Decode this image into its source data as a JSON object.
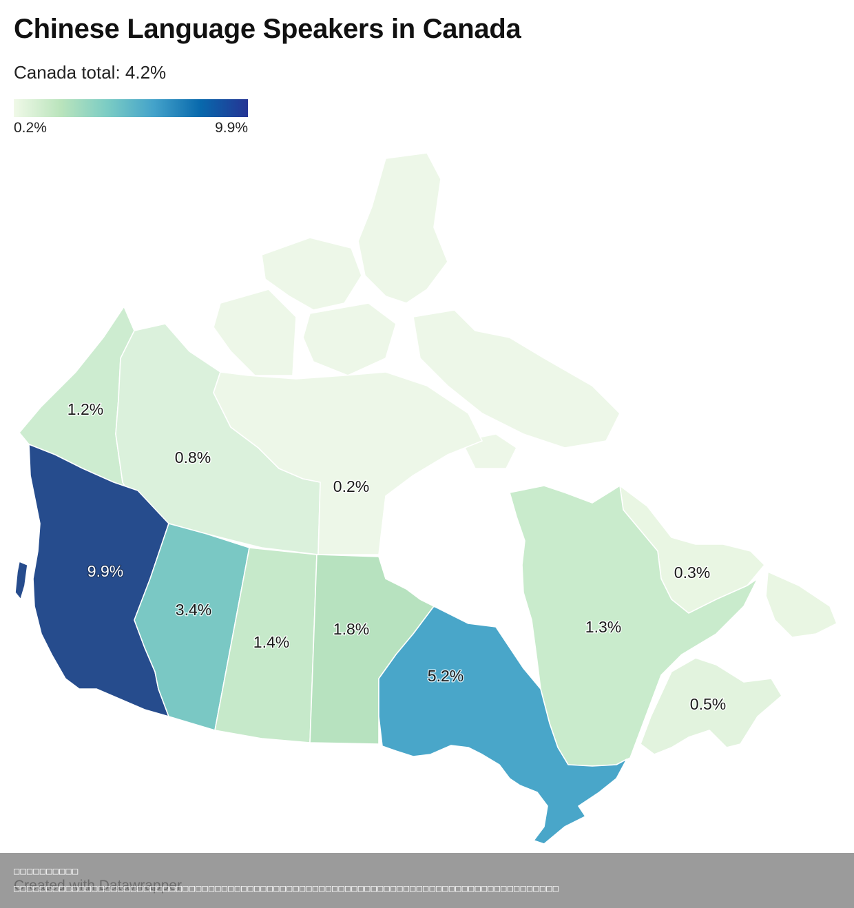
{
  "title": "Chinese Language Speakers in Canada",
  "subtitle": "Canada total: 4.2%",
  "legend": {
    "min_label": "0.2%",
    "max_label": "9.9%",
    "min_value": 0.2,
    "max_value": 9.9,
    "color_stops": [
      "#f0f9e8",
      "#bae4bc",
      "#7bccc4",
      "#43a2ca",
      "#0868ac",
      "#253494"
    ]
  },
  "chart_data": {
    "type": "choropleth",
    "title": "Chinese Language Speakers in Canada",
    "subtitle": "Canada total: 4.2%",
    "regions": [
      {
        "label": "1.2%",
        "value": 1.2,
        "color": "#cdecd0"
      },
      {
        "label": "0.8%",
        "value": 0.8,
        "color": "#dbf1dc"
      },
      {
        "label": "0.2%",
        "value": 0.2,
        "color": "#edf7e8"
      },
      {
        "label": "9.9%",
        "value": 9.9,
        "color": "#264c8d"
      },
      {
        "label": "3.4%",
        "value": 3.4,
        "color": "#7ac8c4"
      },
      {
        "label": "1.4%",
        "value": 1.4,
        "color": "#c6e9ca"
      },
      {
        "label": "1.8%",
        "value": 1.8,
        "color": "#b7e2bf"
      },
      {
        "label": "5.2%",
        "value": 5.2,
        "color": "#49a6c9"
      },
      {
        "label": "1.3%",
        "value": 1.3,
        "color": "#c9ebcc"
      },
      {
        "label": "0.3%",
        "value": 0.3,
        "color": "#e9f6e3"
      },
      {
        "label": "0.5%",
        "value": 0.5,
        "color": "#e2f3de"
      }
    ]
  },
  "footer": {
    "credit": "Created with Datawrapper",
    "line_1": "□□□□□□□□□□",
    "line_2": "□□□□□□□□□□□□□□□□□□□□□□□□□□□□□□□□□□□□□□□□□□□□□□□□□□□□□□□□□□□□□□□□□□□□□□□□□□□□□□□□□□□□"
  }
}
